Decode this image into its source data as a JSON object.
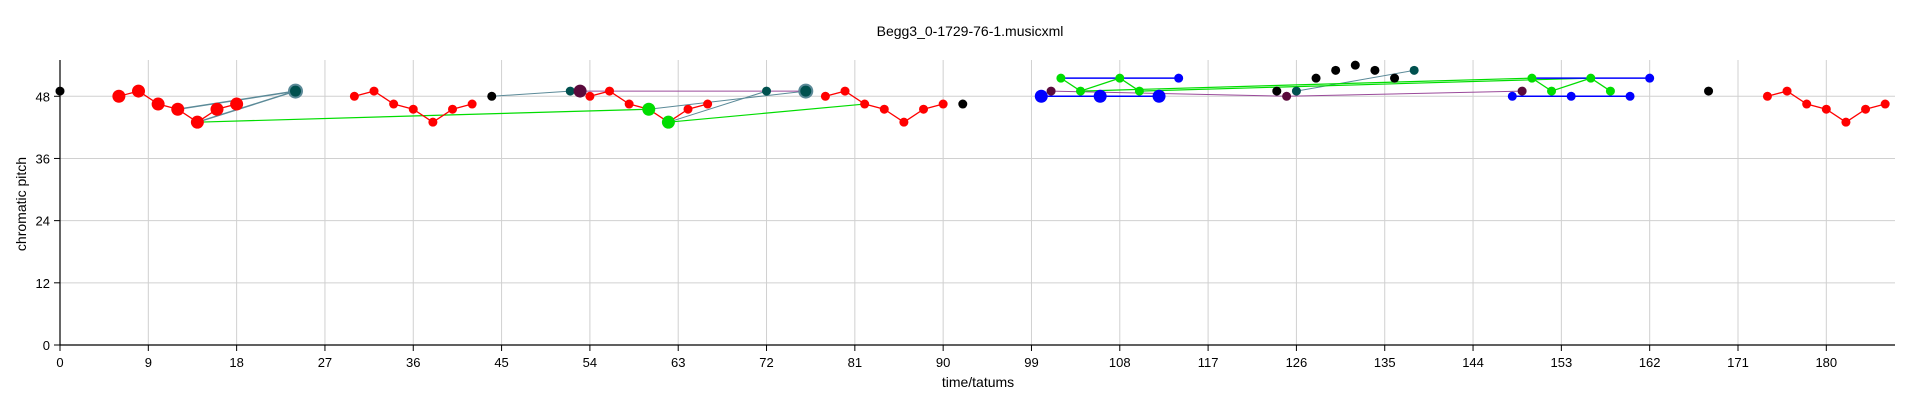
{
  "chart_data": {
    "type": "scatter",
    "title": "Begg3_0-1729-76-1.musicxml",
    "xlabel": "time/tatums",
    "ylabel": "chromatic pitch",
    "xlim": [
      0,
      187
    ],
    "ylim": [
      0,
      55
    ],
    "x_ticks": [
      0,
      9,
      18,
      27,
      36,
      45,
      54,
      63,
      72,
      81,
      90,
      99,
      108,
      117,
      126,
      135,
      144,
      153,
      162,
      171,
      180
    ],
    "y_ticks": [
      0,
      12,
      24,
      36,
      48
    ],
    "grid": true,
    "colors": {
      "red": "#ff0000",
      "green": "#00dd00",
      "blue": "#0000ff",
      "black": "#000000",
      "teal": "#00514f",
      "purple": "#5a0a3c",
      "teal_line": "#5b8a98",
      "purple_line": "#9a4a9a"
    },
    "series": [
      {
        "color": "red",
        "connect": true,
        "size": "large",
        "points": [
          [
            6,
            48
          ],
          [
            8,
            49
          ],
          [
            10,
            46.5
          ],
          [
            12,
            45.5
          ],
          [
            14,
            43
          ],
          [
            16,
            45.5
          ],
          [
            18,
            46.5
          ]
        ]
      },
      {
        "color": "red",
        "connect": true,
        "size": "small",
        "points": [
          [
            30,
            48
          ],
          [
            32,
            49
          ],
          [
            34,
            46.5
          ],
          [
            36,
            45.5
          ],
          [
            38,
            43
          ],
          [
            40,
            45.5
          ],
          [
            42,
            46.5
          ]
        ]
      },
      {
        "color": "red",
        "connect": true,
        "size": "small",
        "points": [
          [
            54,
            48
          ],
          [
            56,
            49
          ],
          [
            58,
            46.5
          ],
          [
            60,
            45.5
          ],
          [
            62,
            43
          ],
          [
            64,
            45.5
          ],
          [
            66,
            46.5
          ]
        ]
      },
      {
        "color": "red",
        "connect": true,
        "size": "small",
        "points": [
          [
            78,
            48
          ],
          [
            80,
            49
          ],
          [
            82,
            46.5
          ],
          [
            84,
            45.5
          ],
          [
            86,
            43
          ],
          [
            88,
            45.5
          ],
          [
            90,
            46.5
          ]
        ]
      },
      {
        "color": "red",
        "connect": true,
        "size": "small",
        "points": [
          [
            174,
            48
          ],
          [
            176,
            49
          ],
          [
            178,
            46.5
          ],
          [
            180,
            45.5
          ],
          [
            182,
            43
          ],
          [
            184,
            45.5
          ],
          [
            186,
            46.5
          ]
        ]
      },
      {
        "color": "green",
        "connect": true,
        "size": "small",
        "points": [
          [
            102,
            51.5
          ],
          [
            104,
            49
          ],
          [
            108,
            51.5
          ],
          [
            110,
            49
          ]
        ]
      },
      {
        "color": "green",
        "connect": true,
        "size": "small",
        "points": [
          [
            150,
            51.5
          ],
          [
            152,
            49
          ],
          [
            156,
            51.5
          ],
          [
            158,
            49
          ]
        ]
      },
      {
        "color": "green",
        "connect": false,
        "size": "large",
        "points": [
          [
            60,
            45.5
          ],
          [
            62,
            43
          ]
        ]
      },
      {
        "color": "blue",
        "connect": false,
        "size": "large",
        "points": [
          [
            100,
            48
          ],
          [
            106,
            48
          ],
          [
            112,
            48
          ]
        ]
      },
      {
        "color": "blue",
        "connect": false,
        "size": "small",
        "points": [
          [
            114,
            51.5
          ],
          [
            148,
            48
          ],
          [
            154,
            48
          ],
          [
            160,
            48
          ],
          [
            162,
            51.5
          ]
        ]
      },
      {
        "color": "black",
        "connect": false,
        "size": "small",
        "points": [
          [
            0,
            49
          ],
          [
            44,
            48
          ],
          [
            92,
            46.5
          ],
          [
            124,
            49
          ],
          [
            128,
            51.5
          ],
          [
            130,
            53
          ],
          [
            132,
            54
          ],
          [
            134,
            53
          ],
          [
            136,
            51.5
          ],
          [
            168,
            49
          ]
        ]
      },
      {
        "color": "teal",
        "connect": false,
        "size": "large",
        "points": [
          [
            24,
            49
          ],
          [
            76,
            49
          ]
        ]
      },
      {
        "color": "teal",
        "connect": false,
        "size": "small",
        "points": [
          [
            52,
            49
          ],
          [
            72,
            49
          ],
          [
            126,
            49
          ],
          [
            138,
            53
          ]
        ]
      },
      {
        "color": "purple",
        "connect": false,
        "size": "large",
        "points": [
          [
            53,
            49
          ]
        ]
      },
      {
        "color": "purple",
        "connect": false,
        "size": "small",
        "points": [
          [
            101,
            49
          ],
          [
            125,
            48
          ],
          [
            149,
            49
          ]
        ]
      }
    ],
    "links": [
      {
        "color": "teal_line",
        "width": 1.5,
        "from": [
          12,
          45.5
        ],
        "to": [
          24,
          49
        ]
      },
      {
        "color": "teal_line",
        "width": 1.5,
        "from": [
          14,
          43
        ],
        "to": [
          24,
          49
        ]
      },
      {
        "color": "teal_line",
        "width": 1,
        "from": [
          44,
          48
        ],
        "to": [
          52,
          49
        ]
      },
      {
        "color": "teal_line",
        "width": 1,
        "from": [
          60,
          45.5
        ],
        "to": [
          76,
          49
        ]
      },
      {
        "color": "teal_line",
        "width": 1,
        "from": [
          62,
          43
        ],
        "to": [
          72,
          49
        ]
      },
      {
        "color": "teal_line",
        "width": 1,
        "from": [
          126,
          49
        ],
        "to": [
          138,
          53
        ]
      },
      {
        "color": "purple_line",
        "width": 1,
        "from": [
          53,
          49
        ],
        "to": [
          76,
          49
        ]
      },
      {
        "color": "purple_line",
        "width": 1,
        "from": [
          101,
          49
        ],
        "to": [
          125,
          48
        ]
      },
      {
        "color": "purple_line",
        "width": 1,
        "from": [
          125,
          48
        ],
        "to": [
          149,
          49
        ]
      },
      {
        "color": "green",
        "width": 1.2,
        "from": [
          14,
          43
        ],
        "to": [
          60,
          45.5
        ]
      },
      {
        "color": "green",
        "width": 1.2,
        "from": [
          62,
          43
        ],
        "to": [
          82,
          46.5
        ]
      },
      {
        "color": "green",
        "width": 1.2,
        "from": [
          104,
          49
        ],
        "to": [
          150,
          51.5
        ]
      },
      {
        "color": "green",
        "width": 1.2,
        "from": [
          110,
          49
        ],
        "to": [
          156,
          51.5
        ]
      },
      {
        "color": "blue",
        "width": 1.5,
        "from": [
          102,
          51.5
        ],
        "to": [
          114,
          51.5
        ]
      },
      {
        "color": "blue",
        "width": 1.5,
        "from": [
          100,
          48
        ],
        "to": [
          112,
          48
        ]
      },
      {
        "color": "blue",
        "width": 1.5,
        "from": [
          148,
          48
        ],
        "to": [
          160,
          48
        ]
      },
      {
        "color": "blue",
        "width": 1.5,
        "from": [
          150,
          51.5
        ],
        "to": [
          162,
          51.5
        ]
      }
    ]
  }
}
